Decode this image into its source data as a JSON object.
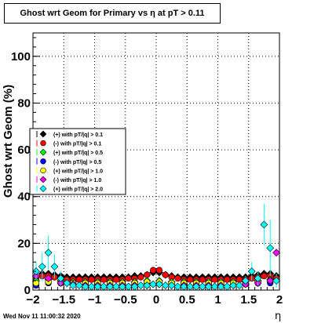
{
  "chart_data": {
    "type": "scatter",
    "title": "Ghost wrt Geom for Primary vs   η at pT > 0.11",
    "xlabel": "η",
    "ylabel": "Ghost wrt Geom (%)",
    "xlim": [
      -2.0,
      2.0
    ],
    "ylim": [
      0,
      110
    ],
    "x_ticks": [
      "−2",
      "−1.5",
      "−1",
      "−0.5",
      "0",
      "0.5",
      "1",
      "1.5",
      "2"
    ],
    "y_ticks": [
      "0",
      "20",
      "40",
      "60",
      "80",
      "100"
    ],
    "x_tick_values": [
      -2,
      -1.5,
      -1,
      -0.5,
      0,
      0.5,
      1,
      1.5,
      2
    ],
    "y_tick_values": [
      0,
      20,
      40,
      60,
      80,
      100
    ],
    "grid": true,
    "legend_position": "middle-left",
    "series": [
      {
        "name": "(+) with pT/|q| > 0.1",
        "color": "#000000",
        "marker": "diamond",
        "x": [
          -1.95,
          -1.85,
          -1.75,
          -1.65,
          -1.55,
          -1.45,
          -1.35,
          -1.25,
          -1.15,
          -1.05,
          -0.95,
          -0.85,
          -0.75,
          -0.65,
          -0.55,
          -0.45,
          -0.35,
          -0.25,
          -0.15,
          -0.05,
          0.05,
          0.15,
          0.25,
          0.35,
          0.45,
          0.55,
          0.65,
          0.75,
          0.85,
          0.95,
          1.05,
          1.15,
          1.25,
          1.35,
          1.45,
          1.55,
          1.65,
          1.75,
          1.85,
          1.95
        ],
        "y": [
          6,
          7,
          7,
          6.5,
          6,
          5.5,
          5.5,
          5.5,
          5.5,
          5.5,
          5.5,
          5.5,
          5.5,
          5.5,
          5.5,
          5.5,
          6,
          6,
          6.5,
          7.5,
          7.5,
          6.5,
          6,
          5.5,
          5.5,
          5.5,
          5.5,
          5.5,
          5.5,
          5.5,
          5.5,
          5.5,
          5.5,
          5.5,
          5.5,
          6,
          6.5,
          7,
          7,
          6
        ]
      },
      {
        "name": "(-) with pT/|q| > 0.1",
        "color": "#ff0000",
        "marker": "circle",
        "x": [
          -1.95,
          -1.85,
          -1.75,
          -1.65,
          -1.55,
          -1.45,
          -1.35,
          -1.25,
          -1.15,
          -1.05,
          -0.95,
          -0.85,
          -0.75,
          -0.65,
          -0.55,
          -0.45,
          -0.35,
          -0.25,
          -0.15,
          -0.05,
          0.05,
          0.15,
          0.25,
          0.35,
          0.45,
          0.55,
          0.65,
          0.75,
          0.85,
          0.95,
          1.05,
          1.15,
          1.25,
          1.35,
          1.45,
          1.55,
          1.65,
          1.75,
          1.85,
          1.95
        ],
        "y": [
          5,
          6,
          6,
          5.5,
          5,
          4.5,
          4.5,
          4.5,
          4.5,
          4.5,
          4.5,
          4.5,
          4.5,
          4.5,
          4.5,
          5,
          5,
          5.5,
          6.5,
          8.5,
          8.5,
          6.5,
          5.5,
          5,
          4.5,
          4.5,
          4.5,
          4.5,
          4.5,
          4.5,
          4.5,
          4.5,
          4.5,
          4.5,
          4.5,
          5,
          5.5,
          6,
          6,
          5
        ]
      },
      {
        "name": "(+) with pT/|q| > 0.5",
        "color": "#00ff00",
        "marker": "diamond",
        "x": [
          -1.95,
          -1.75,
          -1.55,
          -1.35,
          -1.15,
          -0.95,
          -0.75,
          -0.55,
          -0.35,
          -0.15,
          0.05,
          0.25,
          0.45,
          0.65,
          0.85,
          1.05,
          1.25,
          1.45,
          1.65,
          1.85
        ],
        "y": [
          4,
          4.5,
          4,
          3.5,
          3.5,
          3.5,
          3.5,
          3.5,
          3.5,
          4,
          4,
          3.5,
          3.5,
          3.5,
          3.5,
          3.5,
          3.5,
          3.5,
          4,
          4.5
        ]
      },
      {
        "name": "(-) with pT/|q| > 0.5",
        "color": "#0000ff",
        "marker": "circle",
        "x": [
          -1.95,
          -1.75,
          -1.55,
          -1.35,
          -1.15,
          -0.95,
          -0.75,
          -0.55,
          -0.35,
          -0.15,
          0.05,
          0.25,
          0.45,
          0.65,
          0.85,
          1.05,
          1.25,
          1.45,
          1.65,
          1.85
        ],
        "y": [
          2,
          3,
          3,
          2.5,
          2.5,
          2.5,
          2.5,
          2.5,
          2.5,
          3,
          3,
          2.5,
          2.5,
          2.5,
          2.5,
          2.5,
          2.5,
          2.5,
          3,
          3
        ]
      },
      {
        "name": "(+) with pT/|q| > 1.0",
        "color": "#ffff00",
        "marker": "circle",
        "x": [
          -1.95,
          -1.75,
          -1.55,
          -1.35,
          -1.15,
          -0.95,
          -0.75,
          -0.55,
          -0.35,
          -0.15,
          0.05,
          0.25,
          0.45,
          0.65,
          0.85,
          1.05,
          1.25,
          1.45,
          1.65,
          1.85
        ],
        "y": [
          3,
          3.5,
          3,
          3,
          3,
          3,
          3,
          3,
          3,
          3.5,
          3.5,
          3,
          3,
          3,
          3,
          3,
          3,
          3,
          3.5,
          4
        ]
      },
      {
        "name": "(-) with pT/|q| > 1.0",
        "color": "#ff00ff",
        "marker": "diamond",
        "x": [
          -1.95,
          -1.75,
          -1.55,
          -1.35,
          -1.15,
          -0.95,
          -0.75,
          -0.55,
          -0.35,
          -0.15,
          0.05,
          0.25,
          0.45,
          0.65,
          0.85,
          1.05,
          1.25,
          1.45,
          1.65,
          1.85,
          1.95
        ],
        "y": [
          6,
          5,
          3,
          2.5,
          2,
          2,
          2,
          2,
          2,
          2,
          2.5,
          2,
          2,
          2,
          2,
          2,
          2,
          2.5,
          3,
          4,
          16
        ]
      },
      {
        "name": "(+) with pT/|q| > 2.0",
        "color": "#00ffff",
        "marker": "diamond",
        "x": [
          -1.95,
          -1.85,
          -1.75,
          -1.65,
          -1.55,
          -1.45,
          -1.35,
          -1.25,
          -1.15,
          -1.05,
          -0.95,
          -0.85,
          -0.75,
          -0.65,
          -0.55,
          -0.45,
          -0.35,
          -0.25,
          -0.15,
          -0.05,
          0.05,
          0.15,
          0.25,
          0.35,
          0.45,
          0.55,
          0.65,
          0.75,
          0.85,
          0.95,
          1.05,
          1.15,
          1.25,
          1.35,
          1.45,
          1.55,
          1.65,
          1.75,
          1.85,
          1.95
        ],
        "y": [
          8,
          10,
          16,
          10,
          5,
          3,
          2,
          2,
          1.5,
          1.5,
          1.5,
          1.5,
          1.5,
          1.5,
          1.5,
          1.5,
          1.5,
          2,
          2,
          2.5,
          2.5,
          2,
          2,
          1.5,
          1.5,
          1.5,
          1.5,
          1.5,
          1.5,
          1.5,
          1.5,
          1.5,
          2,
          2,
          4,
          8,
          5,
          28,
          18,
          4
        ],
        "err": [
          4,
          6,
          7,
          5,
          3,
          2,
          1,
          1,
          1,
          1,
          1,
          1,
          1,
          1,
          1,
          1,
          1,
          1,
          1,
          1,
          1,
          1,
          1,
          1,
          1,
          1,
          1,
          1,
          1,
          1,
          1,
          1,
          1,
          1,
          2,
          4,
          3,
          9,
          12,
          3
        ]
      }
    ]
  },
  "footer": {
    "timestamp": "Wed Nov 11 11:00:32 2020"
  }
}
